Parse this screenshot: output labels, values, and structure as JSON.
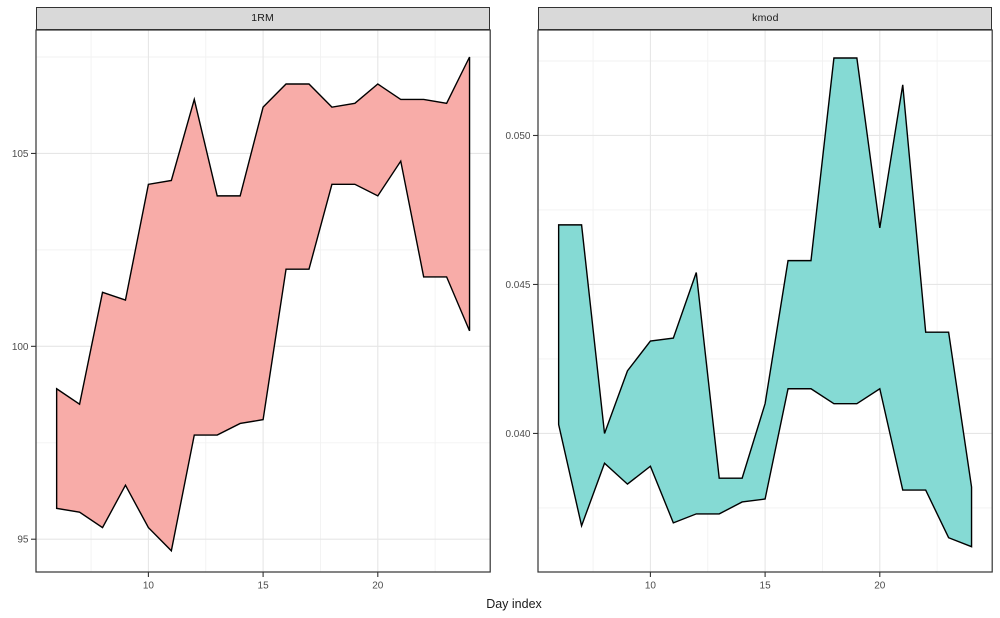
{
  "chart_data": {
    "type": "area",
    "title": "",
    "xlabel": "Day index",
    "ylabel": "",
    "x": [
      6,
      7,
      8,
      9,
      10,
      11,
      12,
      13,
      14,
      15,
      16,
      17,
      18,
      19,
      20,
      21,
      22,
      23,
      24
    ],
    "x_domain": [
      5.1,
      24.9
    ],
    "x_ticks": [
      10,
      15,
      20
    ],
    "x_tick_labels": [
      "10",
      "15",
      "20"
    ],
    "x_minor": [
      7.5,
      12.5,
      17.5,
      22.5
    ],
    "legend": "none",
    "grid": "on",
    "facets": [
      {
        "title": "1RM",
        "fill": "#F8ACA8",
        "stroke": "#000000",
        "y_domain": [
          94.15,
          108.2
        ],
        "y_ticks": [
          95,
          100,
          105
        ],
        "y_tick_labels": [
          "95",
          "100",
          "105"
        ],
        "y_minor": [
          97.5,
          102.5,
          107.5
        ],
        "series": [
          {
            "name": "upper",
            "values": [
              98.9,
              98.5,
              101.4,
              101.2,
              104.2,
              104.3,
              106.4,
              103.9,
              103.9,
              106.2,
              106.8,
              106.8,
              106.2,
              106.3,
              106.8,
              106.4,
              106.4,
              106.3,
              107.5
            ]
          },
          {
            "name": "lower",
            "values": [
              95.8,
              95.7,
              95.3,
              96.4,
              95.3,
              94.7,
              97.7,
              97.7,
              98.0,
              98.1,
              102.0,
              102.0,
              104.2,
              104.2,
              103.9,
              104.8,
              101.8,
              101.8,
              100.4
            ]
          }
        ]
      },
      {
        "title": "kmod",
        "fill": "#85DAD4",
        "stroke": "#000000",
        "y_domain": [
          0.03535,
          0.05354
        ],
        "y_ticks": [
          0.04,
          0.045,
          0.05
        ],
        "y_tick_labels": [
          "0.040",
          "0.045",
          "0.050"
        ],
        "y_minor": [
          0.0375,
          0.0425,
          0.0475,
          0.0525
        ],
        "series": [
          {
            "name": "upper",
            "values": [
              0.047,
              0.047,
              0.04,
              0.0421,
              0.0431,
              0.0432,
              0.0454,
              0.0385,
              0.0385,
              0.041,
              0.0458,
              0.0458,
              0.0526,
              0.0526,
              0.0469,
              0.0517,
              0.0434,
              0.0434,
              0.0382
            ]
          },
          {
            "name": "lower",
            "values": [
              0.0403,
              0.0369,
              0.039,
              0.0383,
              0.0389,
              0.037,
              0.0373,
              0.0373,
              0.0377,
              0.0378,
              0.0415,
              0.0415,
              0.041,
              0.041,
              0.0415,
              0.0381,
              0.0381,
              0.0365,
              0.0362
            ]
          }
        ]
      }
    ]
  },
  "theme": {
    "background": "#FFFFFF",
    "strip_fill": "#D9D9D9",
    "strip_border": "#333333",
    "panel_border": "#333333",
    "grid_major": "#E6E6E6",
    "grid_minor": "#F2F2F2",
    "tick_color": "#333333",
    "tick_label_color": "#4D4D4D",
    "axis_title_color": "#1A1A1A",
    "ribbon_outline_width": 1.4
  }
}
